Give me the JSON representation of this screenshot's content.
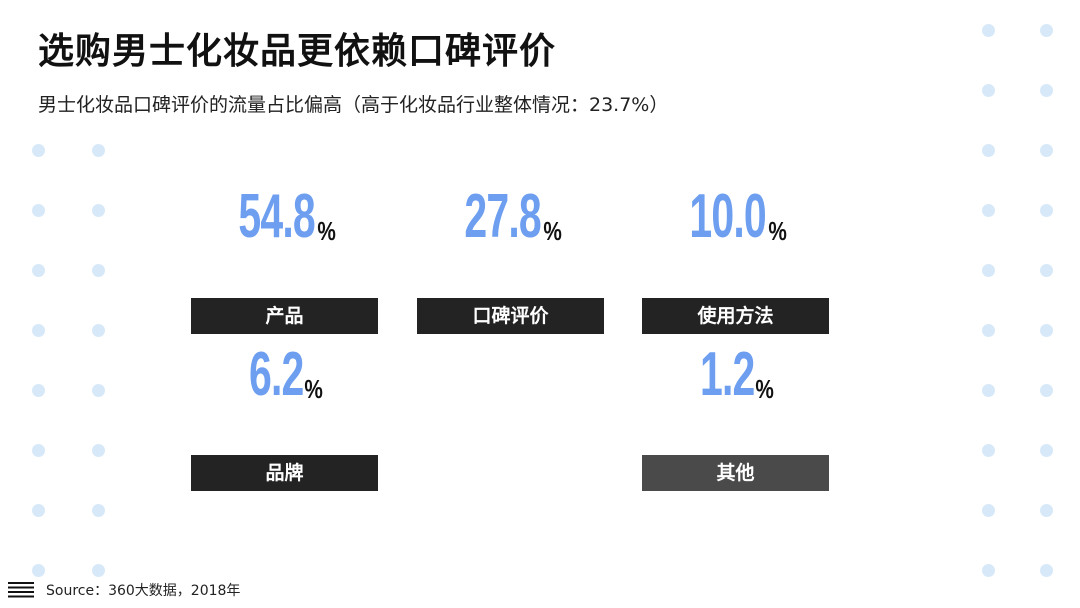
{
  "title": "选购男士化妆品更依赖口碑评价",
  "subtitle": "男士化妆品口碑评价的流量占比偏高（高于化妆品行业整体情况：23.7%）",
  "source": "Source：360大数据，2018年",
  "colors": {
    "number": "#6d9ef0",
    "label_bg": "#232323",
    "label_bg_other": "#4a4a4a",
    "dots": "#d7e9f8"
  },
  "chart_data": {
    "type": "table",
    "categories": [
      "产品",
      "口碑评价",
      "使用方法",
      "品牌",
      "其他"
    ],
    "values": [
      54.8,
      27.8,
      10.0,
      6.2,
      1.2
    ],
    "display": [
      "54.8",
      "27.8",
      "10.0",
      "6.2",
      "1.2"
    ],
    "unit": "%"
  }
}
